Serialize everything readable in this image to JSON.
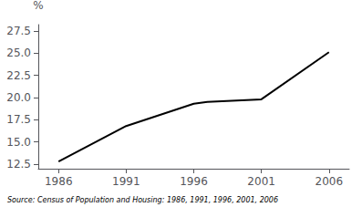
{
  "chart_data": {
    "type": "line",
    "x": [
      1986,
      1991,
      1996,
      1997,
      2001,
      2006
    ],
    "values": [
      12.8,
      16.8,
      19.3,
      19.5,
      19.8,
      25.1
    ],
    "color": "#000000",
    "xlim": [
      1984.5,
      2007.5
    ],
    "xticks": [
      1986,
      1991,
      1996,
      2001,
      2006
    ],
    "ylim": [
      12.0,
      28.2
    ],
    "yticks": [
      12.5,
      {
        "value": 15,
        "label": "15.0"
      },
      17.5,
      {
        "value": 20,
        "label": "20.0"
      },
      22.5,
      {
        "value": 25,
        "label": "25.0"
      },
      27.5
    ],
    "ylabel": "%",
    "source": "Source: Census of Population and Housing: 1986, 1991, 1996, 2001, 2006",
    "grid": false
  }
}
